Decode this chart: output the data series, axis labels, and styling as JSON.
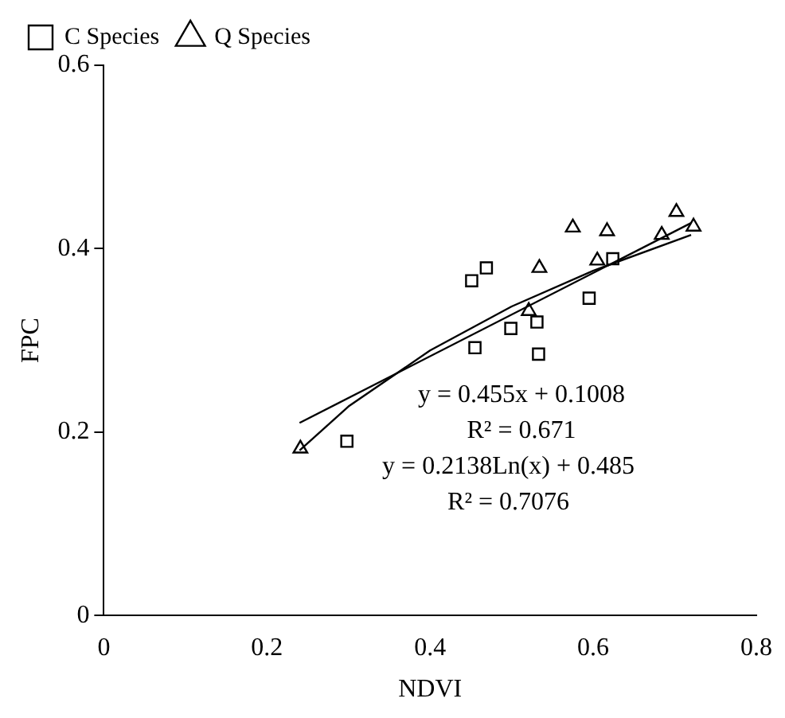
{
  "chart_data": {
    "type": "scatter",
    "xlabel": "NDVI",
    "ylabel": "FPC",
    "xlim": [
      0,
      0.8
    ],
    "xticks": [
      0,
      0.2,
      0.4,
      0.6,
      0.8
    ],
    "ylim": [
      0,
      0.6
    ],
    "yticks": [
      0,
      0.2,
      0.4,
      0.6
    ],
    "grid": false,
    "legend": "top left",
    "series": [
      {
        "name": "C Species",
        "color": "#000000",
        "marker": "square",
        "x": [
          0.451,
          0.469,
          0.499,
          0.531,
          0.455,
          0.533,
          0.595,
          0.624,
          0.298
        ],
        "values": [
          0.365,
          0.379,
          0.313,
          0.32,
          0.292,
          0.285,
          0.346,
          0.389,
          0.19
        ]
      },
      {
        "name": "Q Species",
        "color": "#000000",
        "marker": "triangle",
        "x": [
          0.241,
          0.575,
          0.617,
          0.534,
          0.605,
          0.521,
          0.702,
          0.684,
          0.723
        ],
        "values": [
          0.182,
          0.423,
          0.419,
          0.379,
          0.387,
          0.332,
          0.44,
          0.415,
          0.424
        ]
      },
      {
        "type": "line",
        "color": "#000000",
        "marker": "none",
        "x": [
          0.24,
          0.72
        ],
        "values": [
          0.21,
          0.428
        ]
      },
      {
        "type": "line",
        "color": "#000000",
        "marker": "none",
        "x": [
          0.24,
          0.3,
          0.4,
          0.5,
          0.6,
          0.72
        ],
        "values": [
          0.18,
          0.228,
          0.289,
          0.337,
          0.376,
          0.415
        ]
      }
    ],
    "annotations": [
      "y = 0.455x + 0.1008",
      "R² = 0.671",
      "y = 0.2138Ln(x) + 0.485",
      "R² = 0.7076"
    ]
  }
}
